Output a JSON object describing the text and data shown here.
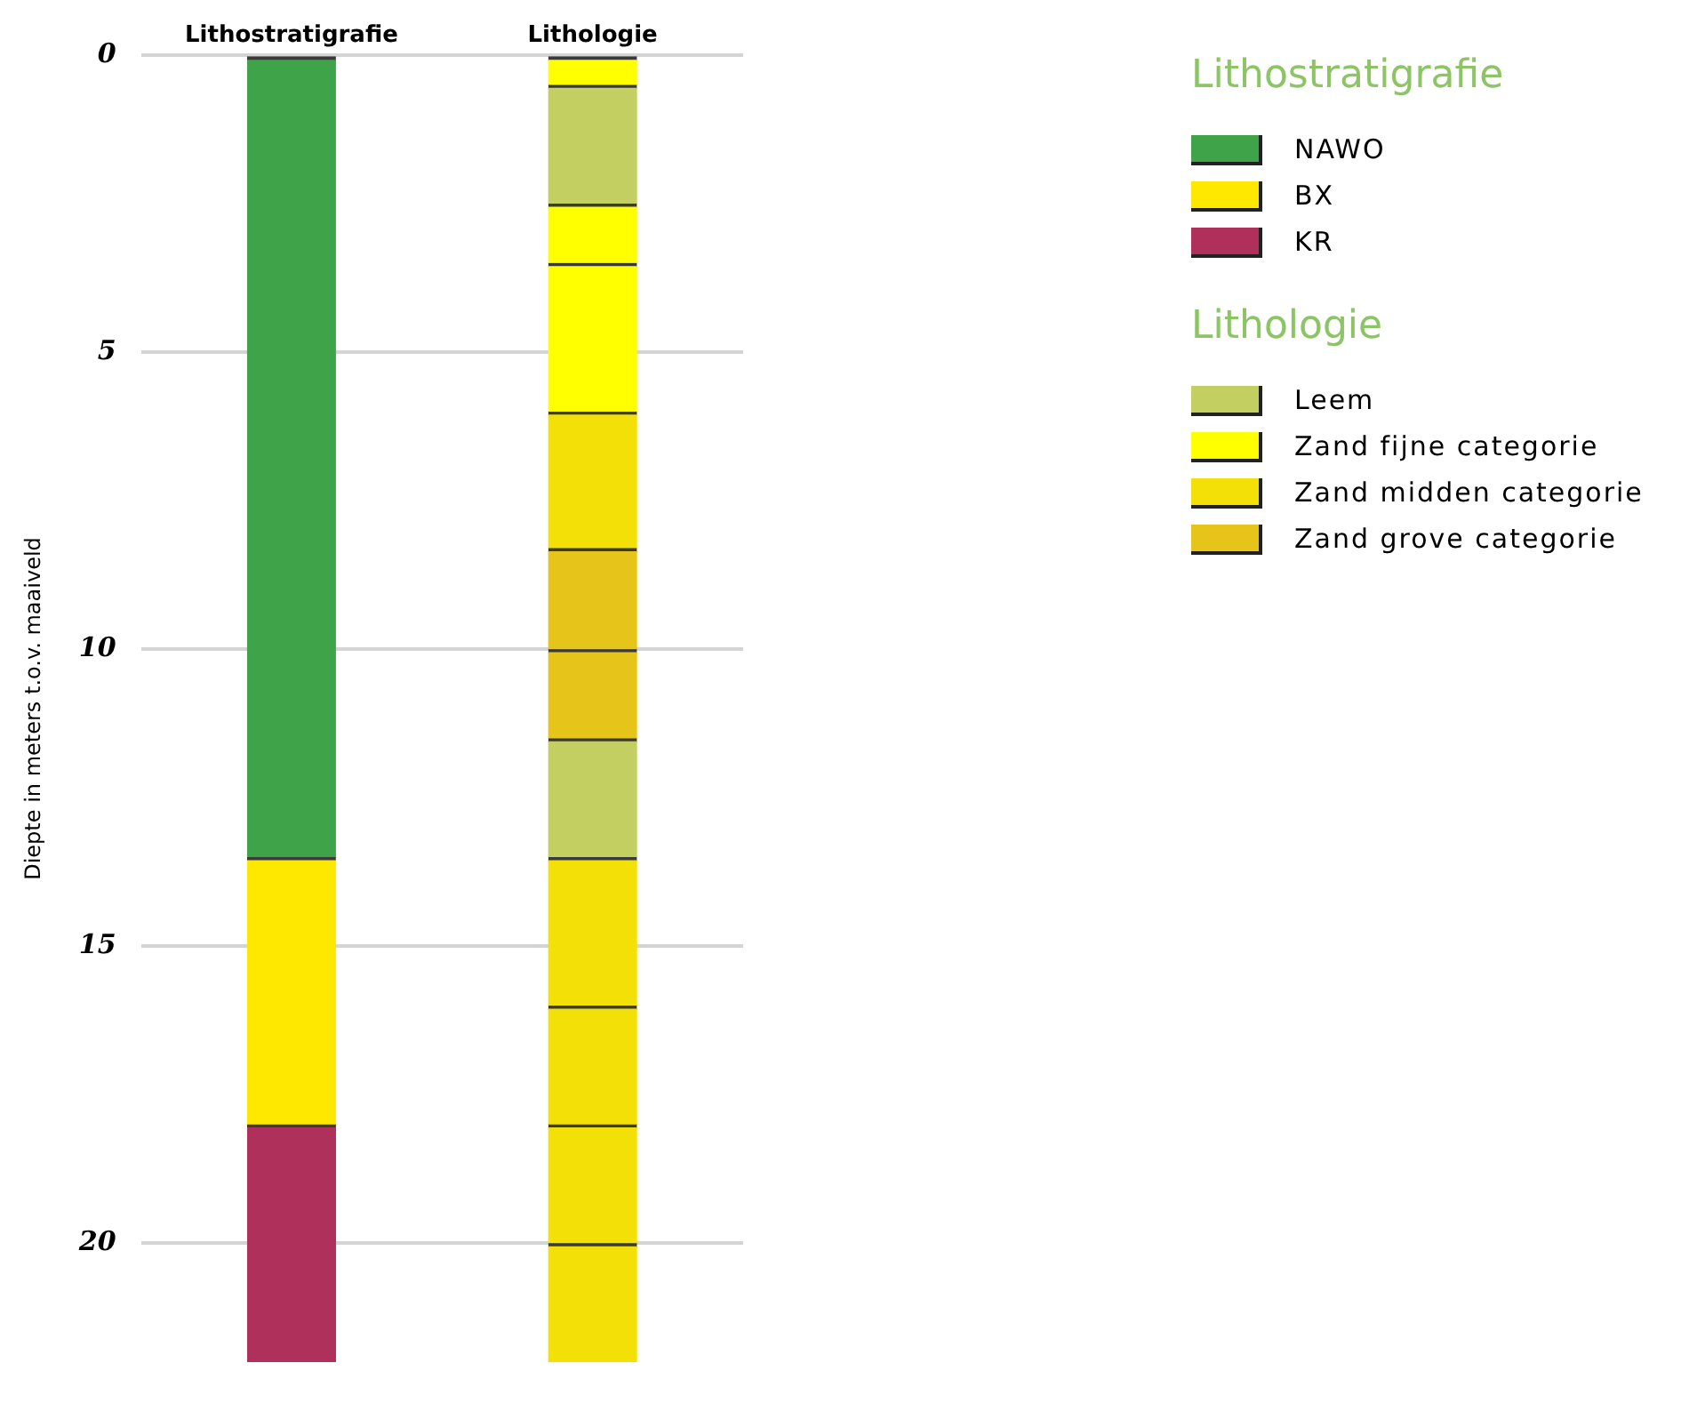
{
  "chart_data": {
    "type": "bar",
    "stacked": true,
    "categories": [
      "Lithostratigrafie",
      "Lithologie"
    ],
    "ylabel": "Diepte in meters t.o.v. maaiveld",
    "ylim": [
      22,
      0
    ],
    "yticks": [
      0,
      5,
      10,
      15,
      20
    ],
    "grid": "y",
    "legend": "top right",
    "series": [
      {
        "name": "NAWO",
        "color": "#3fa34a",
        "values": [
          13.5,
          null
        ]
      },
      {
        "name": "BX",
        "color": "#ffe800",
        "values": [
          4.5,
          null
        ]
      },
      {
        "name": "KR",
        "color": "#b0305c",
        "values": [
          4,
          null
        ]
      },
      {
        "color": "#ffff00",
        "values": [
          null,
          0.5
        ]
      },
      {
        "name": "Leem",
        "color": "#c3cf60",
        "values": [
          null,
          2
        ]
      },
      {
        "name": "Zand fijne categorie",
        "color": "#ffff00",
        "values": [
          null,
          1
        ]
      },
      {
        "color": "#ffff00",
        "values": [
          null,
          2.5
        ]
      },
      {
        "name": "Zand midden categorie",
        "color": "#f2e006",
        "values": [
          null,
          2.3
        ]
      },
      {
        "name": "Zand grove categorie",
        "color": "#e6c41a",
        "values": [
          null,
          1.7
        ]
      },
      {
        "color": "#e6c41a",
        "values": [
          null,
          1.5
        ]
      },
      {
        "color": "#c3cf60",
        "values": [
          null,
          2
        ]
      },
      {
        "color": "#f2e006",
        "values": [
          null,
          2.5
        ]
      },
      {
        "color": "#f2e006",
        "values": [
          null,
          2
        ]
      },
      {
        "color": "#f2e006",
        "values": [
          null,
          2
        ]
      },
      {
        "color": "#f2e006",
        "values": [
          null,
          2
        ]
      }
    ]
  }
}
